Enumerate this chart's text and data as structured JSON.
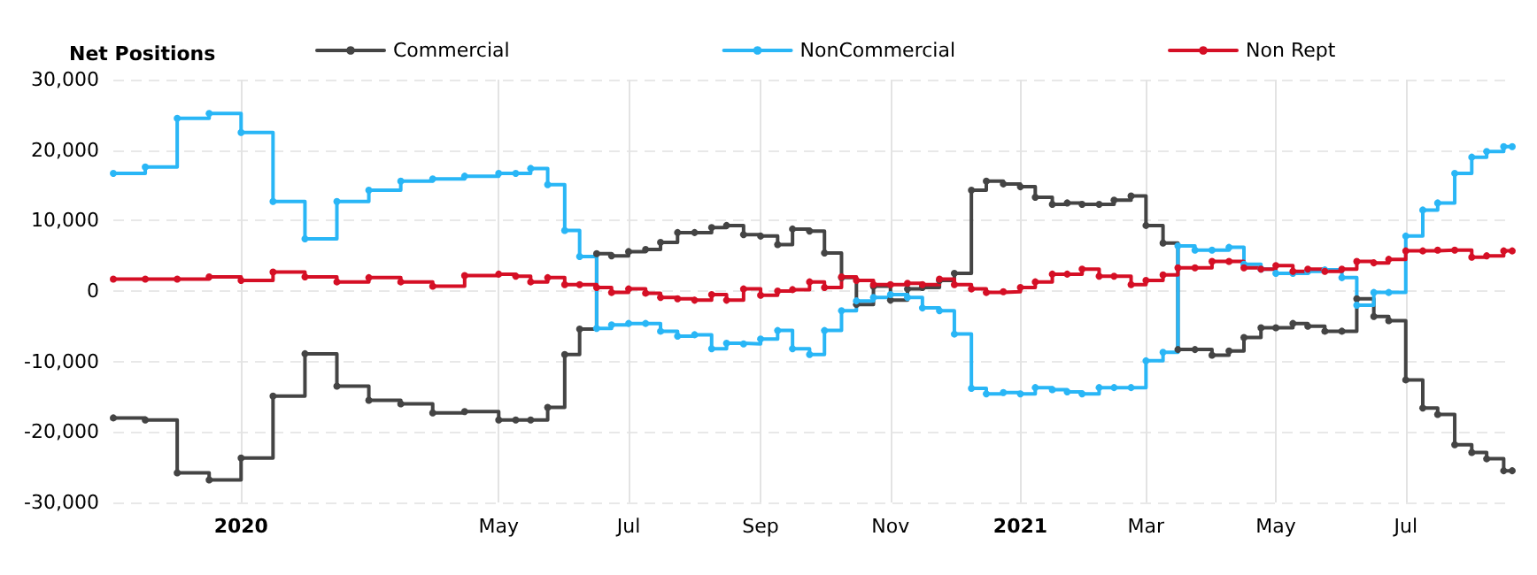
{
  "chart_data": {
    "type": "step",
    "legend_title": "Net Positions",
    "legend": "top",
    "grid": true,
    "marker": "circle",
    "line_style": "solid",
    "x": [
      "2019-11-02",
      "2019-11-17",
      "2019-12-02",
      "2019-12-17",
      "2020-01-01",
      "2020-01-16",
      "2020-01-31",
      "2020-02-15",
      "2020-03-01",
      "2020-03-16",
      "2020-03-31",
      "2020-04-15",
      "2020-05-01",
      "2020-05-09",
      "2020-05-16",
      "2020-05-24",
      "2020-06-01",
      "2020-06-08",
      "2020-06-16",
      "2020-06-23",
      "2020-07-01",
      "2020-07-09",
      "2020-07-16",
      "2020-07-24",
      "2020-08-01",
      "2020-08-09",
      "2020-08-16",
      "2020-08-24",
      "2020-09-01",
      "2020-09-09",
      "2020-09-16",
      "2020-09-24",
      "2020-10-01",
      "2020-10-09",
      "2020-10-16",
      "2020-10-24",
      "2020-11-01",
      "2020-11-09",
      "2020-11-16",
      "2020-11-24",
      "2020-12-01",
      "2020-12-09",
      "2020-12-16",
      "2020-12-24",
      "2021-01-01",
      "2021-01-08",
      "2021-01-16",
      "2021-01-23",
      "2021-01-30",
      "2021-02-07",
      "2021-02-14",
      "2021-02-22",
      "2021-03-01",
      "2021-03-09",
      "2021-03-16",
      "2021-03-24",
      "2021-04-01",
      "2021-04-09",
      "2021-04-16",
      "2021-04-24",
      "2021-05-01",
      "2021-05-09",
      "2021-05-16",
      "2021-05-24",
      "2021-06-01",
      "2021-06-08",
      "2021-06-16",
      "2021-06-23",
      "2021-07-01",
      "2021-07-09",
      "2021-07-16",
      "2021-07-24",
      "2021-08-01",
      "2021-08-08",
      "2021-08-16",
      "2021-08-20"
    ],
    "series": [
      {
        "name": "Commercial",
        "color": "#444444",
        "values": [
          -18000,
          -18300,
          -25800,
          -26800,
          -23700,
          -14900,
          -8900,
          -13500,
          -15500,
          -16000,
          -17300,
          -17100,
          -18300,
          -18300,
          -18300,
          -16500,
          -9000,
          -5400,
          5300,
          5000,
          5600,
          5900,
          6900,
          8300,
          8300,
          9000,
          9300,
          8000,
          7800,
          6600,
          8800,
          8500,
          5400,
          1900,
          -1900,
          700,
          -1300,
          300,
          500,
          1500,
          2500,
          14300,
          15600,
          15200,
          14800,
          13300,
          12300,
          12500,
          12300,
          12300,
          12900,
          13500,
          9300,
          6800,
          -8300,
          -8300,
          -9100,
          -8500,
          -6600,
          -5200,
          -5200,
          -4600,
          -5000,
          -5700,
          -5700,
          -1100,
          -3600,
          -4200,
          -12600,
          -16600,
          -17500,
          -21800,
          -22900,
          -23800,
          -25500,
          -25500
        ]
      },
      {
        "name": "NonCommercial",
        "color": "#29b6f6",
        "values": [
          16700,
          17600,
          24500,
          25200,
          22500,
          12700,
          7400,
          12700,
          14300,
          15600,
          15900,
          16300,
          16700,
          16700,
          17400,
          15100,
          8600,
          4900,
          -5300,
          -4800,
          -4600,
          -4600,
          -5700,
          -6400,
          -6200,
          -8200,
          -7400,
          -7500,
          -6800,
          -5600,
          -8200,
          -9000,
          -5600,
          -2800,
          -1400,
          -900,
          -500,
          -900,
          -2400,
          -2800,
          -6100,
          -13800,
          -14600,
          -14400,
          -14600,
          -13700,
          -14000,
          -14300,
          -14600,
          -13700,
          -13700,
          -13700,
          -9900,
          -8700,
          6400,
          5800,
          5800,
          6200,
          3800,
          3100,
          2500,
          2500,
          2800,
          3000,
          1900,
          -2000,
          -200,
          -200,
          7800,
          11500,
          12500,
          16700,
          19000,
          19800,
          20500,
          20500
        ]
      },
      {
        "name": "Non Rept",
        "color": "#d50f25",
        "values": [
          1700,
          1700,
          1700,
          2000,
          1500,
          2700,
          2000,
          1300,
          1900,
          1300,
          700,
          2200,
          2400,
          2100,
          1300,
          1900,
          900,
          900,
          500,
          -200,
          300,
          -300,
          -900,
          -1100,
          -1300,
          -500,
          -1300,
          300,
          -600,
          0,
          200,
          1300,
          500,
          2000,
          1500,
          900,
          900,
          1100,
          900,
          1700,
          900,
          300,
          -200,
          -100,
          500,
          1300,
          2400,
          2400,
          3100,
          2100,
          2100,
          900,
          1500,
          2300,
          3300,
          3300,
          4200,
          4200,
          3300,
          3100,
          3600,
          2800,
          3100,
          2800,
          3100,
          4200,
          4000,
          4500,
          5700,
          5700,
          5800,
          5800,
          4800,
          5000,
          5700,
          5700
        ]
      }
    ],
    "xlim": [
      "2019-11-02",
      "2021-08-20"
    ],
    "xticks": [
      {
        "value": "2020-01-01",
        "label": "2020"
      },
      {
        "value": "2020-05-01",
        "label": "May"
      },
      {
        "value": "2020-07-01",
        "label": "Jul"
      },
      {
        "value": "2020-09-01",
        "label": "Sep"
      },
      {
        "value": "2020-11-01",
        "label": "Nov"
      },
      {
        "value": "2021-01-01",
        "label": "2021"
      },
      {
        "value": "2021-03-01",
        "label": "Mar"
      },
      {
        "value": "2021-05-01",
        "label": "May"
      },
      {
        "value": "2021-07-01",
        "label": "Jul"
      }
    ],
    "ylim": [
      -30000,
      30000
    ],
    "yticks": [
      {
        "value": -30000,
        "label": "-30,000"
      },
      {
        "value": -20000,
        "label": "-20,000"
      },
      {
        "value": -10000,
        "label": "-10,000"
      },
      0,
      {
        "value": 10000,
        "label": "10,000"
      },
      {
        "value": 20000,
        "label": "20,000"
      },
      {
        "value": 30000,
        "label": "30,000"
      }
    ]
  }
}
